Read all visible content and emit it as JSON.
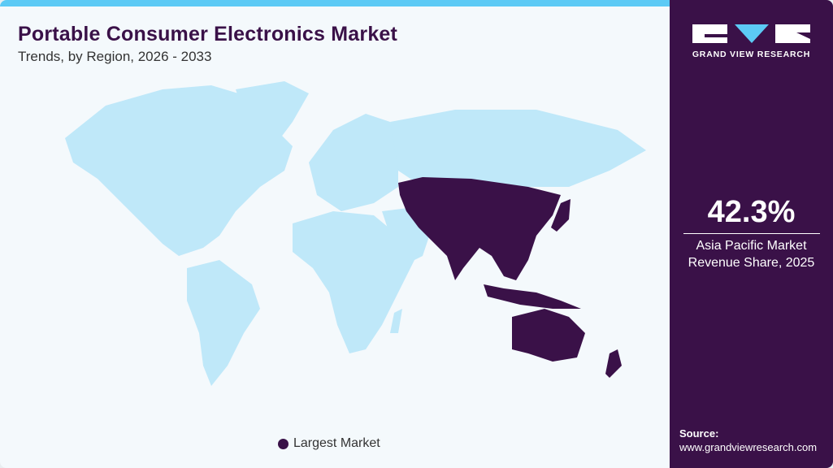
{
  "header": {
    "title": "Portable Consumer Electronics Market",
    "subtitle": "Trends, by Region, 2026 - 2033"
  },
  "map": {
    "highlighted_region": "Asia Pacific",
    "colors": {
      "land": "#bfe8f9",
      "highlight": "#3a1148",
      "accent_bar": "#5ccaf5"
    }
  },
  "legend": {
    "label": "Largest Market"
  },
  "sidebar": {
    "brand": "GRAND VIEW RESEARCH",
    "stat_value": "42.3%",
    "stat_label_line1": "Asia Pacific Market",
    "stat_label_line2": "Revenue Share, 2025",
    "source_label": "Source:",
    "source_url": "www.grandviewresearch.com"
  }
}
